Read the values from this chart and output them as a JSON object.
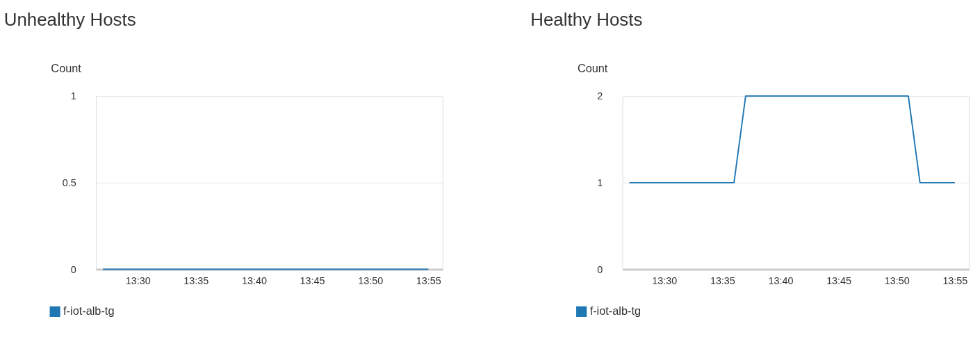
{
  "chart_data": [
    {
      "type": "line",
      "title": "Unhealthy Hosts",
      "ylabel": "Count",
      "x": [
        13.45,
        13.9167
      ],
      "series": [
        {
          "name": "f-iot-alb-tg",
          "color": "#1f77b4",
          "values": [
            0,
            0
          ]
        }
      ],
      "xlim": [
        13.44,
        13.937
      ],
      "xticks": [
        {
          "value": 13.5,
          "label": "13:30"
        },
        {
          "value": 13.5833,
          "label": "13:35"
        },
        {
          "value": 13.6667,
          "label": "13:40"
        },
        {
          "value": 13.75,
          "label": "13:45"
        },
        {
          "value": 13.8333,
          "label": "13:50"
        },
        {
          "value": 13.9167,
          "label": "13:55"
        }
      ],
      "ylim": [
        0,
        1
      ],
      "yticks": [
        0,
        0.5,
        1
      ],
      "grid": "y",
      "legend": "bottom left",
      "marker": "none",
      "line_style": "solid"
    },
    {
      "type": "line",
      "title": "Healthy Hosts",
      "ylabel": "Count",
      "x": [
        13.45,
        13.6,
        13.6167,
        13.85,
        13.8667,
        13.9167
      ],
      "series": [
        {
          "name": "f-iot-alb-tg",
          "color": "#1f77b4",
          "values": [
            1,
            1,
            2,
            2,
            1,
            1
          ]
        }
      ],
      "xlim": [
        13.44,
        13.937
      ],
      "xticks": [
        {
          "value": 13.5,
          "label": "13:30"
        },
        {
          "value": 13.5833,
          "label": "13:35"
        },
        {
          "value": 13.6667,
          "label": "13:40"
        },
        {
          "value": 13.75,
          "label": "13:45"
        },
        {
          "value": 13.8333,
          "label": "13:50"
        },
        {
          "value": 13.9167,
          "label": "13:55"
        }
      ],
      "ylim": [
        0,
        2
      ],
      "yticks": [
        0,
        1,
        2
      ],
      "grid": "y",
      "legend": "bottom left",
      "marker": "none",
      "line_style": "solid"
    }
  ]
}
